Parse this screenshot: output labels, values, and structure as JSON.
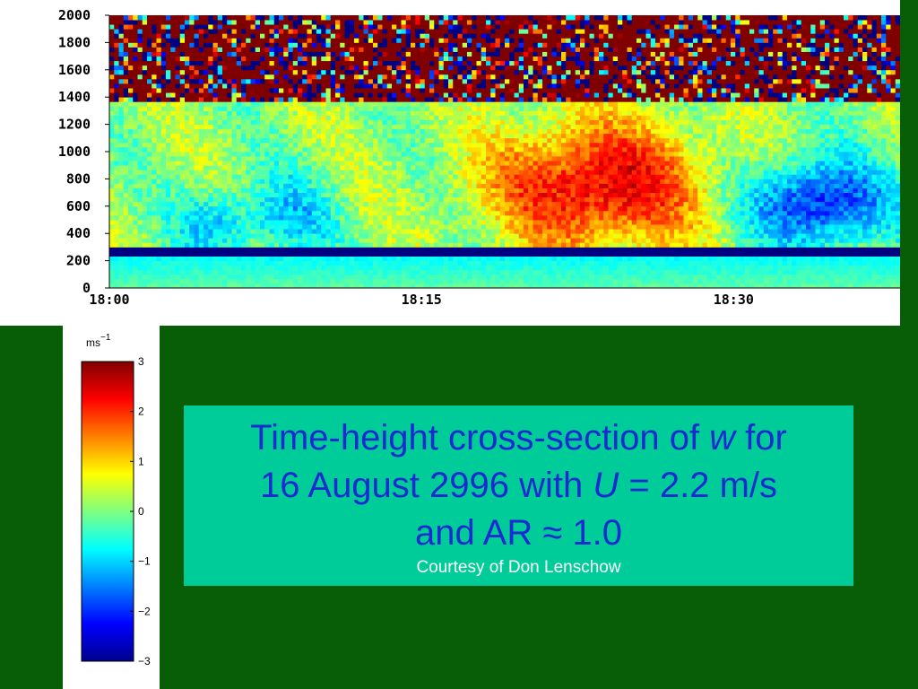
{
  "chart_data": {
    "type": "heatmap",
    "title": "",
    "xlabel": "",
    "ylabel": "",
    "x_ticks": [
      "18:00",
      "18:15",
      "18:30"
    ],
    "x_range_minutes_after_1800": [
      0,
      38
    ],
    "y_ticks": [
      0,
      200,
      400,
      600,
      800,
      1000,
      1200,
      1400,
      1600,
      1800,
      2000
    ],
    "ylim": [
      0,
      2000
    ],
    "colorbar": {
      "unit": "ms",
      "unit_exponent": "−1",
      "range": [
        -3,
        3
      ],
      "ticks": [
        "3",
        "2",
        "1",
        "0",
        "−1",
        "−2",
        "−3"
      ],
      "colormap": "jet"
    },
    "structure_summary": {
      "noise_above_height": 1350,
      "low_band_height": [
        250,
        300
      ],
      "strong_updraft_time_minutes": [
        17,
        30
      ],
      "strong_updraft_height": [
        300,
        1350
      ],
      "strong_downdraft_time_minutes": [
        30,
        38
      ],
      "strong_downdraft_height": [
        350,
        900
      ]
    }
  },
  "caption": {
    "line1_pre": "Time-height cross-section of ",
    "line1_var": "w",
    "line1_post": " for",
    "line2_pre": "16 August 2996 with ",
    "line2_var": "U",
    "line2_post": " = 2.2 m/s",
    "line3": "and  AR ≈ 1.0",
    "credit": "Courtesy of Don Lenschow"
  },
  "colors": {
    "background": "#075e07",
    "caption_box": "#00cc99",
    "caption_text": "#1a2ccf",
    "credit_text": "#ffffff"
  }
}
